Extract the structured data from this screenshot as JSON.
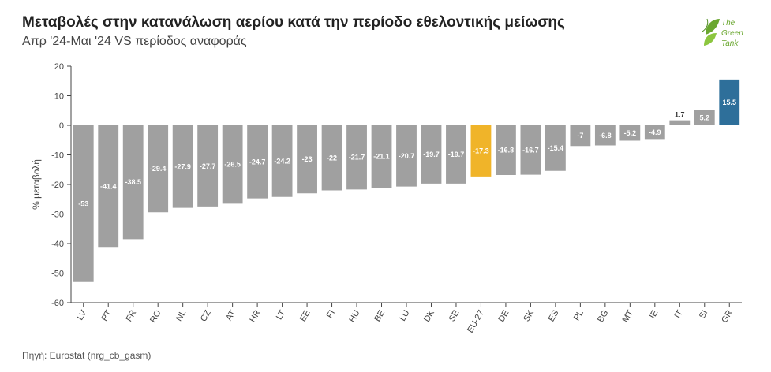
{
  "title": "Μεταβολές στην κατανάλωση αερίου κατά την περίοδο εθελοντικής μείωσης",
  "subtitle": "Απρ '24-Μαι '24 VS περίοδος αναφοράς",
  "source": "Πηγή: Eurostat (nrg_cb_gasm)",
  "logo": {
    "line1": "The",
    "line2": "Green",
    "line3": "Tank"
  },
  "colors": {
    "default": "#a0a0a0",
    "eu": "#f0b429",
    "max": "#2e6f9a",
    "label_dark": "#333333",
    "label_light": "#ffffff"
  },
  "chart_data": {
    "type": "bar",
    "title": "Μεταβολές στην κατανάλωση αερίου κατά την περίοδο εθελοντικής μείωσης",
    "subtitle": "Απρ '24-Μαι '24 VS περίοδος αναφοράς",
    "xlabel": "",
    "ylabel": "% μεταβολή",
    "ylim": [
      -60,
      20
    ],
    "yticks": [
      20,
      10,
      0,
      -10,
      -20,
      -30,
      -40,
      -50,
      -60
    ],
    "grid": false,
    "categories": [
      "LV",
      "PT",
      "FR",
      "RO",
      "NL",
      "CZ",
      "AT",
      "HR",
      "LT",
      "EE",
      "FI",
      "HU",
      "BE",
      "LU",
      "DK",
      "SE",
      "EU-27",
      "DE",
      "SK",
      "ES",
      "PL",
      "BG",
      "MT",
      "IE",
      "IT",
      "SI",
      "GR"
    ],
    "values": [
      -53,
      -41.4,
      -38.5,
      -29.4,
      -27.9,
      -27.7,
      -26.5,
      -24.7,
      -24.2,
      -23,
      -22,
      -21.7,
      -21.1,
      -20.7,
      -19.7,
      -19.7,
      -17.3,
      -16.8,
      -16.7,
      -15.4,
      -7,
      -6.8,
      -5.2,
      -4.9,
      1.7,
      5.2,
      15.5
    ],
    "labels": [
      "-53",
      "-41.4",
      "-38.5",
      "-29.4",
      "-27.9",
      "-27.7",
      "-26.5",
      "-24.7",
      "-24.2",
      "-23",
      "-22",
      "-21.7",
      "-21.1",
      "-20.7",
      "-19.7",
      "-19.7",
      "-17.3",
      "-16.8",
      "-16.7",
      "-15.4",
      "-7",
      "-6.8",
      "-5.2",
      "-4.9",
      "1.7",
      "5.2",
      "15.5"
    ],
    "highlight": {
      "EU-27": "eu",
      "GR": "max"
    }
  }
}
